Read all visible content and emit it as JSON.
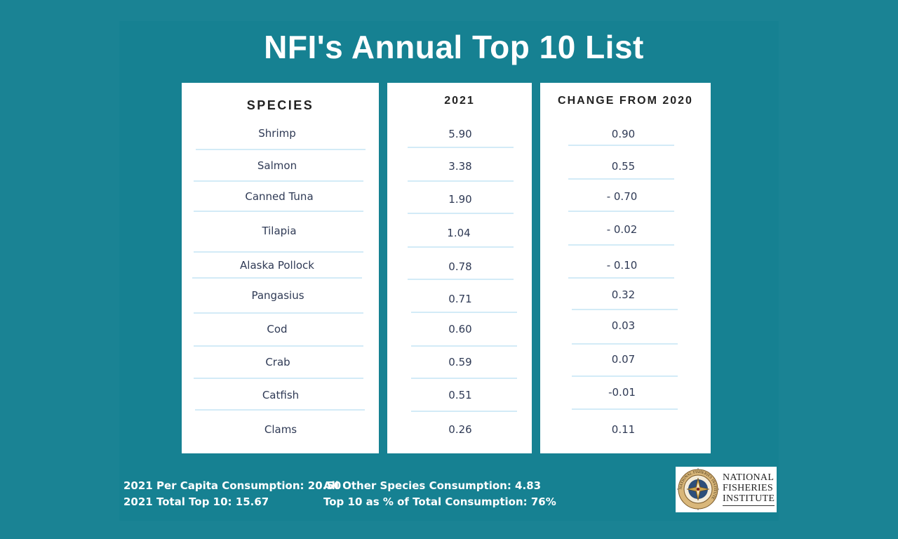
{
  "title": "NFI's Annual Top 10 List",
  "headers": {
    "species": "SPECIES",
    "year": "2021",
    "change": "CHANGE FROM 2020"
  },
  "rows": [
    {
      "species": "Shrimp",
      "value": "5.90",
      "change": "0.90"
    },
    {
      "species": "Salmon",
      "value": "3.38",
      "change": "0.55"
    },
    {
      "species": "Canned Tuna",
      "value": "1.90",
      "change": "- 0.70"
    },
    {
      "species": "Tilapia",
      "value": "1.04",
      "change": "- 0.02"
    },
    {
      "species": "Alaska Pollock",
      "value": "0.78",
      "change": "- 0.10"
    },
    {
      "species": "Pangasius",
      "value": "0.71",
      "change": "0.32"
    },
    {
      "species": "Cod",
      "value": "0.60",
      "change": "0.03"
    },
    {
      "species": "Crab",
      "value": "0.59",
      "change": "0.07"
    },
    {
      "species": "Catfish",
      "value": "0.51",
      "change": "-0.01"
    },
    {
      "species": "Clams",
      "value": "0.26",
      "change": "0.11"
    }
  ],
  "footer": {
    "per_capita": "2021  Per Capita Consumption: 20.50",
    "total_top10": "2021 Total Top 10: 15.67",
    "other_species": "All Other Species Consumption: 4.83",
    "top10_pct": "Top 10 as % of Total Consumption: 76%"
  },
  "logo": {
    "line1": "NATIONAL",
    "line2": "FISHERIES",
    "line3": "INSTITUTE",
    "seal_text": "NATIONAL FISHERIES INSTITUTE",
    "icon": "compass-seal-icon"
  },
  "colors": {
    "background": "#1a8394",
    "panel": "#ffffff",
    "divider": "#d3ebf7",
    "text": "#2f3a55"
  }
}
